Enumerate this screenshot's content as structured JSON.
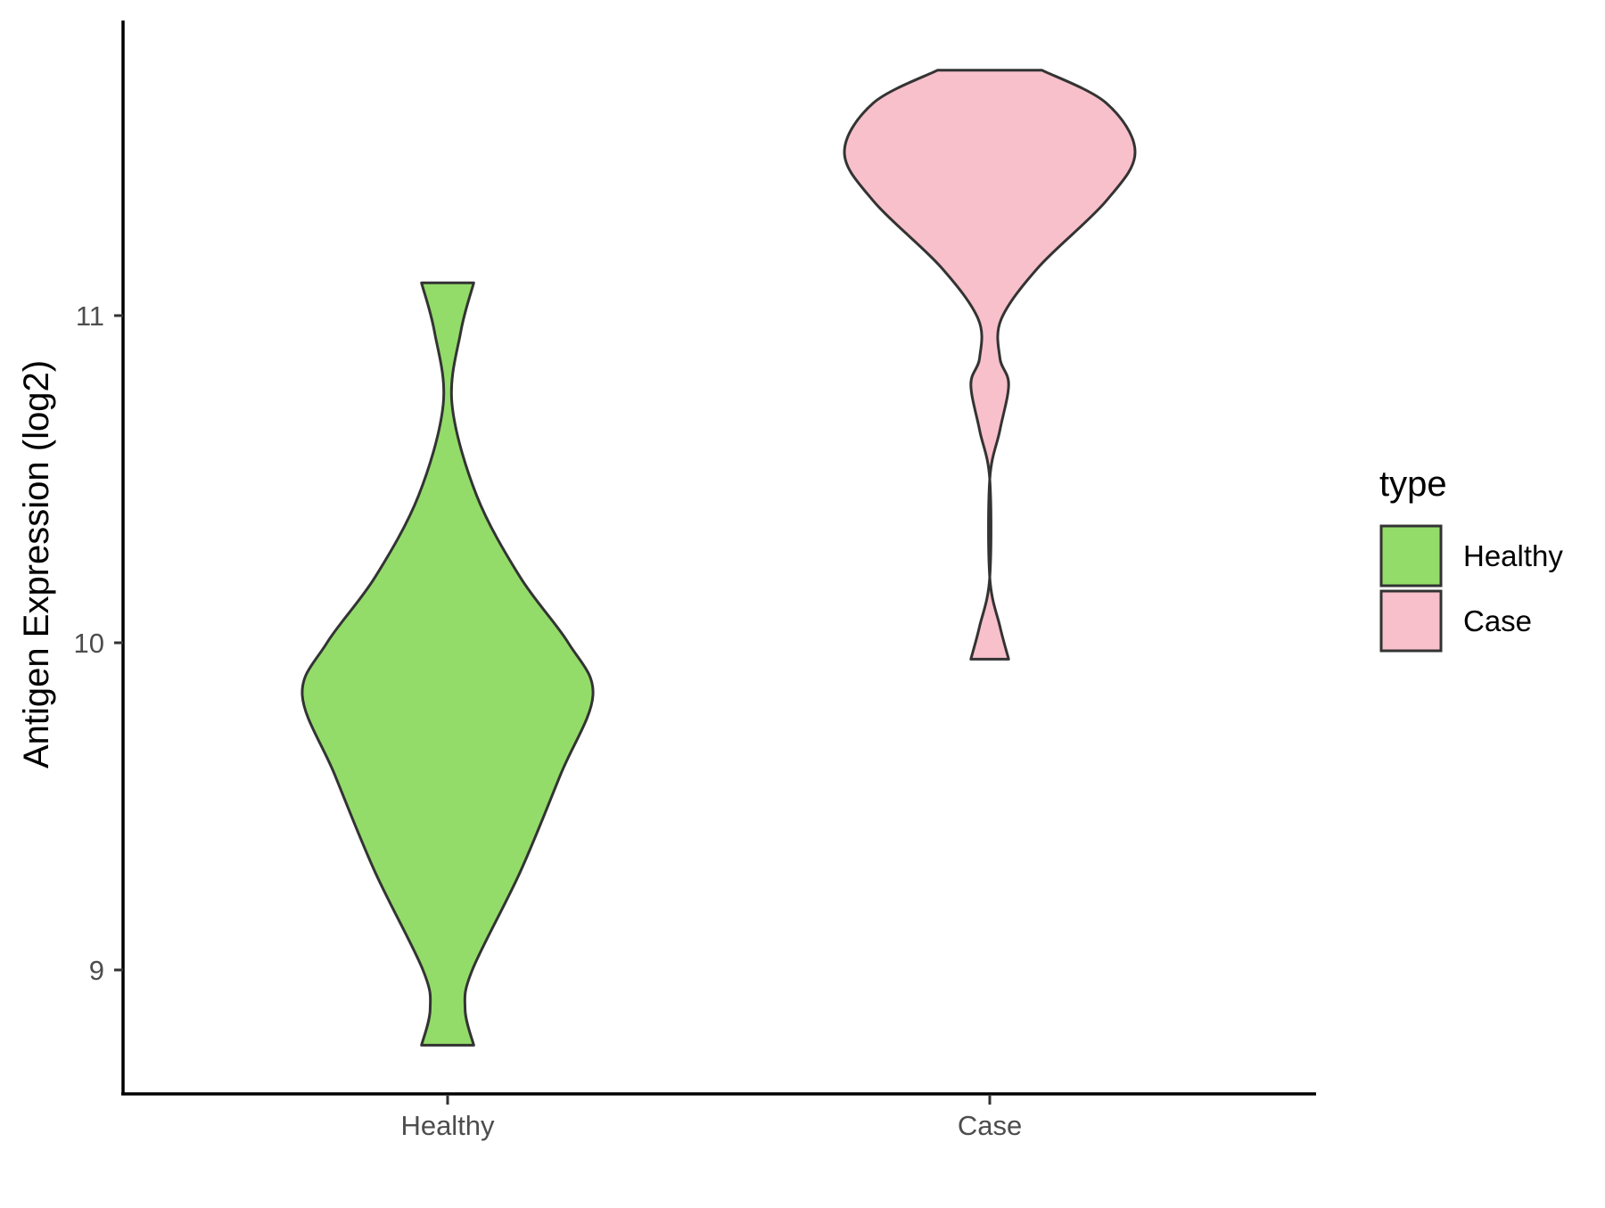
{
  "chart_data": {
    "type": "violin",
    "title": "",
    "xlabel": "",
    "ylabel": "Antigen Expression (log2)",
    "ylim": [
      8.6,
      11.9
    ],
    "yticks": [
      9,
      10,
      11
    ],
    "categories": [
      "Healthy",
      "Case"
    ],
    "series": [
      {
        "name": "Healthy",
        "color": "#93dc6a",
        "y_min": 8.77,
        "y_max": 11.1,
        "density_profile": [
          [
            11.1,
            0.18
          ],
          [
            10.95,
            0.09
          ],
          [
            10.73,
            0.03
          ],
          [
            10.45,
            0.2
          ],
          [
            10.2,
            0.5
          ],
          [
            10.0,
            0.83
          ],
          [
            9.84,
            1.0
          ],
          [
            9.6,
            0.78
          ],
          [
            9.3,
            0.5
          ],
          [
            9.0,
            0.17
          ],
          [
            8.88,
            0.12
          ],
          [
            8.77,
            0.18
          ]
        ]
      },
      {
        "name": "Case",
        "color": "#f8c0cb",
        "y_min": 9.95,
        "y_max": 11.75,
        "density_profile": [
          [
            11.75,
            0.36
          ],
          [
            11.65,
            0.8
          ],
          [
            11.5,
            1.0
          ],
          [
            11.35,
            0.8
          ],
          [
            11.15,
            0.34
          ],
          [
            10.99,
            0.08
          ],
          [
            10.87,
            0.07
          ],
          [
            10.79,
            0.13
          ],
          [
            10.65,
            0.07
          ],
          [
            10.5,
            0.0
          ],
          [
            10.2,
            0.0
          ],
          [
            10.05,
            0.07
          ],
          [
            9.95,
            0.13
          ]
        ]
      }
    ],
    "legend": {
      "title": "type",
      "position": "right",
      "items": [
        {
          "label": "Healthy",
          "color": "#93dc6a"
        },
        {
          "label": "Case",
          "color": "#f8c0cb"
        }
      ]
    },
    "grid": false
  }
}
